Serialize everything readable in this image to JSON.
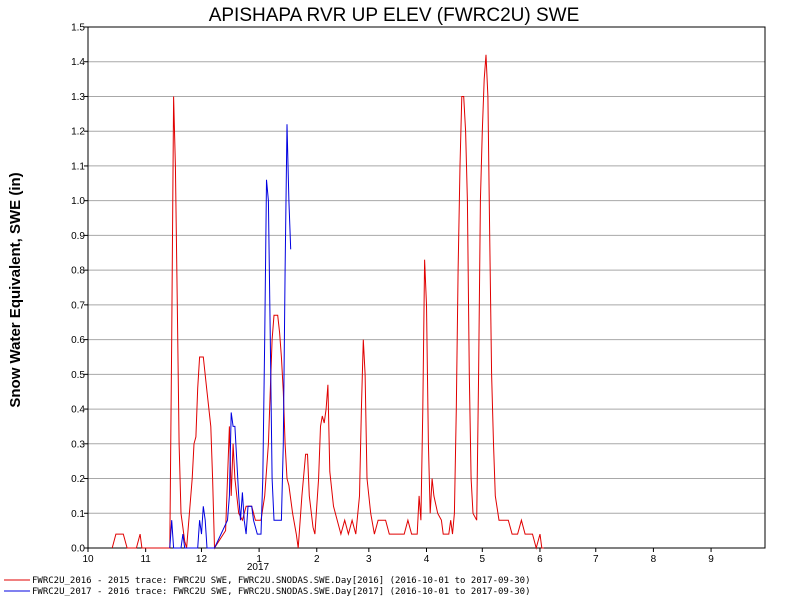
{
  "chart_data": {
    "type": "line",
    "title": "APISHAPA RVR UP ELEV (FWRC2U) SWE",
    "ylabel": "Snow Water Equivalent, SWE (in)",
    "xlabel": "",
    "year_label": "2017",
    "ylim": [
      0,
      1.5
    ],
    "yticks": [
      "0.0",
      "0.1",
      "0.2",
      "0.3",
      "0.4",
      "0.5",
      "0.6",
      "0.7",
      "0.8",
      "0.9",
      "1.0",
      "1.1",
      "1.2",
      "1.3",
      "1.4",
      "1.5"
    ],
    "xlim": [
      "2016-10-01",
      "2017-09-30"
    ],
    "xticks": [
      {
        "date": "2016-10-01",
        "label": "10"
      },
      {
        "date": "2016-11-01",
        "label": "11"
      },
      {
        "date": "2016-12-01",
        "label": "12"
      },
      {
        "date": "2017-01-01",
        "label": "1"
      },
      {
        "date": "2017-02-01",
        "label": "2"
      },
      {
        "date": "2017-03-01",
        "label": "3"
      },
      {
        "date": "2017-04-01",
        "label": "4"
      },
      {
        "date": "2017-05-01",
        "label": "5"
      },
      {
        "date": "2017-06-01",
        "label": "6"
      },
      {
        "date": "2017-07-01",
        "label": "7"
      },
      {
        "date": "2017-08-01",
        "label": "8"
      },
      {
        "date": "2017-09-01",
        "label": "9"
      }
    ],
    "grid": true,
    "legend_position": "bottom-left",
    "series": [
      {
        "name": "FWRC2U_2016 - 2015 trace: FWRC2U SWE, FWRC2U.SNODAS.SWE.Day[2016] (2016-10-01 to 2017-09-30)",
        "color": "#e00000",
        "points": [
          [
            "2016-10-14",
            0.0
          ],
          [
            "2016-10-16",
            0.04
          ],
          [
            "2016-10-20",
            0.04
          ],
          [
            "2016-10-22",
            0.0
          ],
          [
            "2016-10-27",
            0.0
          ],
          [
            "2016-10-29",
            0.04
          ],
          [
            "2016-10-30",
            0.0
          ],
          [
            "2016-11-14",
            0.0
          ],
          [
            "2016-11-15",
            0.6
          ],
          [
            "2016-11-16",
            1.3
          ],
          [
            "2016-11-17",
            1.1
          ],
          [
            "2016-11-18",
            0.7
          ],
          [
            "2016-11-19",
            0.3
          ],
          [
            "2016-11-20",
            0.1
          ],
          [
            "2016-11-22",
            0.02
          ],
          [
            "2016-11-23",
            0.0
          ],
          [
            "2016-11-26",
            0.2
          ],
          [
            "2016-11-27",
            0.3
          ],
          [
            "2016-11-28",
            0.32
          ],
          [
            "2016-11-29",
            0.46
          ],
          [
            "2016-11-30",
            0.55
          ],
          [
            "2016-12-02",
            0.55
          ],
          [
            "2016-12-04",
            0.45
          ],
          [
            "2016-12-06",
            0.35
          ],
          [
            "2016-12-07",
            0.2
          ],
          [
            "2016-12-08",
            0.0
          ],
          [
            "2016-12-14",
            0.05
          ],
          [
            "2016-12-15",
            0.2
          ],
          [
            "2016-12-16",
            0.35
          ],
          [
            "2016-12-17",
            0.15
          ],
          [
            "2016-12-18",
            0.3
          ],
          [
            "2016-12-19",
            0.2
          ],
          [
            "2016-12-20",
            0.15
          ],
          [
            "2016-12-21",
            0.1
          ],
          [
            "2016-12-23",
            0.08
          ],
          [
            "2016-12-25",
            0.12
          ],
          [
            "2016-12-28",
            0.12
          ],
          [
            "2016-12-30",
            0.08
          ],
          [
            "2017-01-02",
            0.08
          ],
          [
            "2017-01-04",
            0.15
          ],
          [
            "2017-01-06",
            0.3
          ],
          [
            "2017-01-08",
            0.6
          ],
          [
            "2017-01-09",
            0.67
          ],
          [
            "2017-01-11",
            0.67
          ],
          [
            "2017-01-12",
            0.62
          ],
          [
            "2017-01-13",
            0.55
          ],
          [
            "2017-01-14",
            0.45
          ],
          [
            "2017-01-15",
            0.3
          ],
          [
            "2017-01-16",
            0.2
          ],
          [
            "2017-01-17",
            0.18
          ],
          [
            "2017-01-19",
            0.1
          ],
          [
            "2017-01-21",
            0.04
          ],
          [
            "2017-01-22",
            0.0
          ],
          [
            "2017-01-24",
            0.15
          ],
          [
            "2017-01-26",
            0.27
          ],
          [
            "2017-01-27",
            0.27
          ],
          [
            "2017-01-28",
            0.15
          ],
          [
            "2017-01-30",
            0.06
          ],
          [
            "2017-01-31",
            0.04
          ],
          [
            "2017-02-02",
            0.2
          ],
          [
            "2017-02-03",
            0.35
          ],
          [
            "2017-02-04",
            0.38
          ],
          [
            "2017-02-05",
            0.36
          ],
          [
            "2017-02-06",
            0.4
          ],
          [
            "2017-02-07",
            0.47
          ],
          [
            "2017-02-08",
            0.22
          ],
          [
            "2017-02-10",
            0.12
          ],
          [
            "2017-02-12",
            0.08
          ],
          [
            "2017-02-14",
            0.04
          ],
          [
            "2017-02-16",
            0.08
          ],
          [
            "2017-02-18",
            0.04
          ],
          [
            "2017-02-20",
            0.08
          ],
          [
            "2017-02-22",
            0.04
          ],
          [
            "2017-02-24",
            0.15
          ],
          [
            "2017-02-25",
            0.4
          ],
          [
            "2017-02-26",
            0.6
          ],
          [
            "2017-02-27",
            0.5
          ],
          [
            "2017-02-28",
            0.2
          ],
          [
            "2017-03-02",
            0.1
          ],
          [
            "2017-03-04",
            0.04
          ],
          [
            "2017-03-06",
            0.08
          ],
          [
            "2017-03-10",
            0.08
          ],
          [
            "2017-03-12",
            0.04
          ],
          [
            "2017-03-20",
            0.04
          ],
          [
            "2017-03-22",
            0.08
          ],
          [
            "2017-03-24",
            0.04
          ],
          [
            "2017-03-27",
            0.04
          ],
          [
            "2017-03-28",
            0.15
          ],
          [
            "2017-03-29",
            0.08
          ],
          [
            "2017-03-30",
            0.4
          ],
          [
            "2017-03-31",
            0.83
          ],
          [
            "2017-04-01",
            0.7
          ],
          [
            "2017-04-02",
            0.3
          ],
          [
            "2017-04-03",
            0.1
          ],
          [
            "2017-04-04",
            0.2
          ],
          [
            "2017-04-05",
            0.15
          ],
          [
            "2017-04-07",
            0.1
          ],
          [
            "2017-04-09",
            0.08
          ],
          [
            "2017-04-10",
            0.04
          ],
          [
            "2017-04-13",
            0.04
          ],
          [
            "2017-04-14",
            0.08
          ],
          [
            "2017-04-15",
            0.04
          ],
          [
            "2017-04-16",
            0.1
          ],
          [
            "2017-04-17",
            0.4
          ],
          [
            "2017-04-18",
            0.8
          ],
          [
            "2017-04-19",
            1.1
          ],
          [
            "2017-04-20",
            1.3
          ],
          [
            "2017-04-21",
            1.3
          ],
          [
            "2017-04-22",
            1.2
          ],
          [
            "2017-04-23",
            1.0
          ],
          [
            "2017-04-24",
            0.5
          ],
          [
            "2017-04-25",
            0.2
          ],
          [
            "2017-04-26",
            0.1
          ],
          [
            "2017-04-28",
            0.08
          ],
          [
            "2017-04-29",
            0.5
          ],
          [
            "2017-04-30",
            1.0
          ],
          [
            "2017-05-01",
            1.2
          ],
          [
            "2017-05-02",
            1.35
          ],
          [
            "2017-05-03",
            1.42
          ],
          [
            "2017-05-04",
            1.3
          ],
          [
            "2017-05-05",
            0.9
          ],
          [
            "2017-05-06",
            0.5
          ],
          [
            "2017-05-07",
            0.3
          ],
          [
            "2017-05-08",
            0.15
          ],
          [
            "2017-05-10",
            0.08
          ],
          [
            "2017-05-15",
            0.08
          ],
          [
            "2017-05-17",
            0.04
          ],
          [
            "2017-05-20",
            0.04
          ],
          [
            "2017-05-22",
            0.08
          ],
          [
            "2017-05-24",
            0.04
          ],
          [
            "2017-05-28",
            0.04
          ],
          [
            "2017-05-30",
            0.0
          ],
          [
            "2017-06-01",
            0.04
          ],
          [
            "2017-06-02",
            0.0
          ],
          [
            "2017-06-03",
            0.0
          ]
        ]
      },
      {
        "name": "FWRC2U_2017 - 2016 trace: FWRC2U SWE, FWRC2U.SNODAS.SWE.Day[2017] (2016-10-01 to 2017-09-30)",
        "color": "#0000e0",
        "points": [
          [
            "2016-11-14",
            0.0
          ],
          [
            "2016-11-15",
            0.08
          ],
          [
            "2016-11-16",
            0.0
          ],
          [
            "2016-11-20",
            0.0
          ],
          [
            "2016-11-21",
            0.04
          ],
          [
            "2016-11-22",
            0.0
          ],
          [
            "2016-11-29",
            0.0
          ],
          [
            "2016-11-30",
            0.08
          ],
          [
            "2016-12-01",
            0.04
          ],
          [
            "2016-12-02",
            0.12
          ],
          [
            "2016-12-03",
            0.08
          ],
          [
            "2016-12-04",
            0.0
          ],
          [
            "2016-12-08",
            0.0
          ],
          [
            "2016-12-15",
            0.08
          ],
          [
            "2016-12-16",
            0.15
          ],
          [
            "2016-12-17",
            0.39
          ],
          [
            "2016-12-18",
            0.35
          ],
          [
            "2016-12-19",
            0.35
          ],
          [
            "2016-12-20",
            0.25
          ],
          [
            "2016-12-21",
            0.15
          ],
          [
            "2016-12-22",
            0.08
          ],
          [
            "2016-12-23",
            0.16
          ],
          [
            "2016-12-24",
            0.08
          ],
          [
            "2016-12-25",
            0.04
          ],
          [
            "2016-12-26",
            0.12
          ],
          [
            "2016-12-28",
            0.12
          ],
          [
            "2016-12-29",
            0.08
          ],
          [
            "2016-12-31",
            0.04
          ],
          [
            "2017-01-02",
            0.04
          ],
          [
            "2017-01-03",
            0.2
          ],
          [
            "2017-01-04",
            0.6
          ],
          [
            "2017-01-05",
            1.06
          ],
          [
            "2017-01-06",
            1.0
          ],
          [
            "2017-01-07",
            0.6
          ],
          [
            "2017-01-08",
            0.2
          ],
          [
            "2017-01-09",
            0.08
          ],
          [
            "2017-01-13",
            0.08
          ],
          [
            "2017-01-14",
            0.3
          ],
          [
            "2017-01-15",
            0.8
          ],
          [
            "2017-01-16",
            1.22
          ],
          [
            "2017-01-17",
            1.0
          ],
          [
            "2017-01-18",
            0.86
          ]
        ]
      }
    ]
  }
}
